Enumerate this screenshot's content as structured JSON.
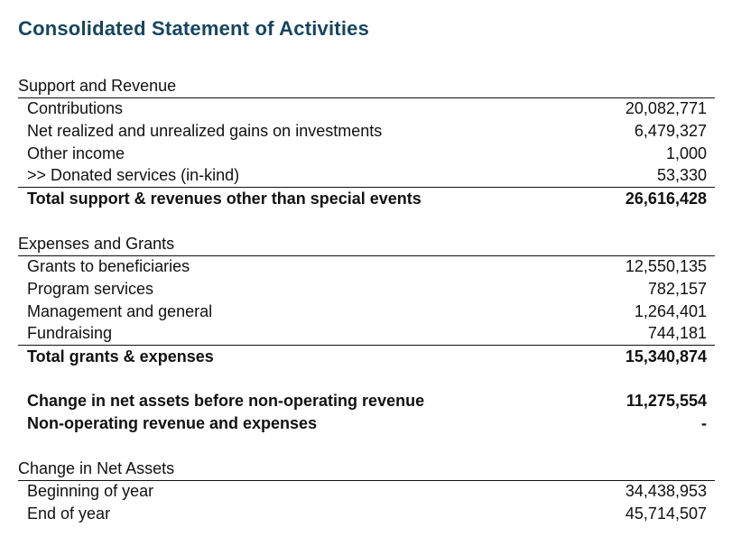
{
  "title": "Consolidated Statement of Activities",
  "support": {
    "heading": "Support and Revenue",
    "rows": [
      {
        "label": "Contributions",
        "value": "20,082,771"
      },
      {
        "label": "Net realized and unrealized gains on investments",
        "value": "6,479,327"
      },
      {
        "label": "Other income",
        "value": "1,000"
      },
      {
        "label": ">> Donated services (in-kind)",
        "value": "53,330"
      }
    ],
    "total": {
      "label": "Total support & revenues other than special events",
      "value": "26,616,428"
    }
  },
  "expenses": {
    "heading": "Expenses and Grants",
    "rows": [
      {
        "label": "Grants to beneficiaries",
        "value": "12,550,135"
      },
      {
        "label": "Program services",
        "value": "782,157"
      },
      {
        "label": "Management and general",
        "value": "1,264,401"
      },
      {
        "label": "Fundraising",
        "value": "744,181"
      }
    ],
    "total": {
      "label": "Total grants & expenses",
      "value": "15,340,874"
    }
  },
  "change_before": {
    "label": "Change in net assets before non-operating revenue",
    "value": "11,275,554"
  },
  "non_operating": {
    "label": "Non-operating revenue and expenses",
    "value": "-"
  },
  "net_assets": {
    "heading": "Change in Net Assets",
    "rows": [
      {
        "label": "Beginning of year",
        "value": "34,438,953"
      },
      {
        "label": "End of year",
        "value": "45,714,507"
      }
    ]
  }
}
